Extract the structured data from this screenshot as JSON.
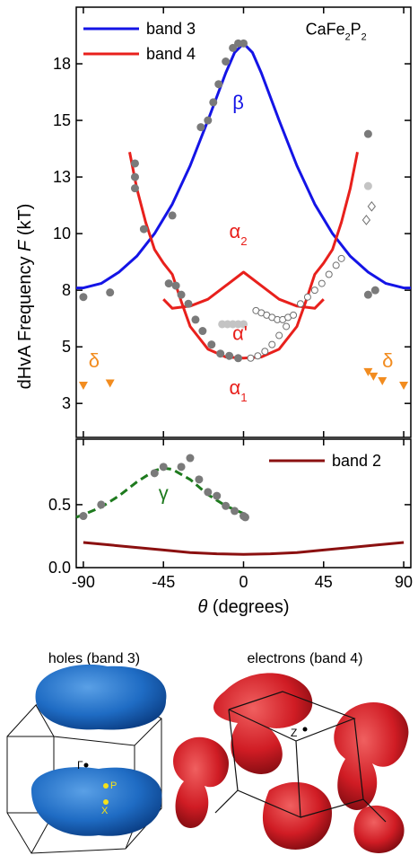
{
  "chart_data": [
    {
      "type": "line",
      "ylabel": [
        "dHvA Frequency ",
        "F",
        " (kT)"
      ],
      "xlim": [
        -94,
        94
      ],
      "xticks": [
        -90,
        -45,
        0,
        45,
        90
      ],
      "ylim": [
        1,
        20
      ],
      "yticks": [
        {
          "value": 2.5,
          "label": "3"
        },
        {
          "value": 5,
          "label": "5"
        },
        {
          "value": 7.5,
          "label": "8"
        },
        {
          "value": 10,
          "label": "10"
        },
        {
          "value": 12.5,
          "label": "13"
        },
        {
          "value": 15,
          "label": "15"
        },
        {
          "value": 17.5,
          "label": "18"
        }
      ],
      "legend": "upper left",
      "series": [
        {
          "type": "line",
          "name": "band 3",
          "color": "#1414e6",
          "x": [
            -94,
            -90,
            -80,
            -70,
            -60,
            -50,
            -40,
            -30,
            -20,
            -10,
            -5,
            0,
            5,
            10,
            20,
            30,
            40,
            50,
            60,
            70,
            80,
            90,
            94
          ],
          "values": [
            7.6,
            7.6,
            7.8,
            8.3,
            9.0,
            10.0,
            11.3,
            13.0,
            15.0,
            17.1,
            18.0,
            18.4,
            18.0,
            17.1,
            15.0,
            13.0,
            11.3,
            10.0,
            9.0,
            8.3,
            7.8,
            7.6,
            7.6
          ]
        },
        {
          "type": "line",
          "name": "band 4",
          "color": "#e8201c",
          "x": [
            -64,
            -60,
            -55,
            -50,
            -45,
            -40,
            -35,
            -30,
            -20,
            -10,
            0,
            10,
            20,
            30,
            35,
            40,
            45,
            50,
            55,
            60,
            64,
            null,
            -45,
            -40,
            -30,
            -20,
            -10,
            0,
            10,
            20,
            30,
            40,
            45
          ],
          "values": [
            13.6,
            12.0,
            10.5,
            9.3,
            8.7,
            8.2,
            7.0,
            5.9,
            4.9,
            4.55,
            4.5,
            4.55,
            4.9,
            5.9,
            7.0,
            8.2,
            8.7,
            9.3,
            10.5,
            12.0,
            13.6,
            null,
            7.1,
            6.7,
            6.8,
            7.1,
            7.7,
            8.3,
            7.7,
            7.1,
            6.8,
            6.7,
            7.1
          ]
        },
        {
          "type": "scatter",
          "marker": "circle",
          "color": "#7a7a7a",
          "x": [
            -90,
            -75,
            -61,
            -61,
            -61,
            -56,
            -40,
            -24,
            -20,
            -17,
            -14,
            -10,
            -6,
            -3,
            0,
            -42,
            -38,
            -35,
            -31,
            -27,
            -23,
            -18,
            -13,
            -8,
            -3,
            70,
            70,
            74
          ],
          "values": [
            7.2,
            7.4,
            13.1,
            12.5,
            12.0,
            10.2,
            10.8,
            14.7,
            15.0,
            15.8,
            16.6,
            17.6,
            18.2,
            18.4,
            18.4,
            7.8,
            7.7,
            7.3,
            6.9,
            6.2,
            5.7,
            5.1,
            4.7,
            4.6,
            4.5,
            14.4,
            7.3,
            7.5
          ]
        },
        {
          "type": "scatter",
          "marker": "circle",
          "color": "#c4c4c4",
          "x": [
            -12,
            -9,
            -6,
            -3,
            0,
            70
          ],
          "values": [
            6.0,
            6.0,
            6.0,
            6.0,
            6.0,
            12.1
          ]
        },
        {
          "type": "scatter",
          "marker": "open-circle",
          "color": "#707070",
          "x": [
            7,
            10,
            13,
            16,
            19,
            22,
            25,
            4,
            8,
            12,
            16,
            20,
            24,
            28,
            32,
            36,
            40,
            44,
            48,
            52,
            55
          ],
          "values": [
            6.6,
            6.5,
            6.4,
            6.3,
            6.2,
            6.2,
            6.3,
            4.5,
            4.6,
            4.8,
            5.1,
            5.5,
            5.9,
            6.4,
            6.9,
            7.2,
            7.5,
            7.8,
            8.2,
            8.6,
            8.9
          ]
        },
        {
          "type": "scatter",
          "marker": "diamond",
          "color": "#707070",
          "x": [
            72,
            69
          ],
          "values": [
            11.2,
            10.6
          ]
        },
        {
          "type": "scatter",
          "marker": "triangle",
          "color": "#f28c1f",
          "x": [
            -90,
            -75,
            70,
            73,
            78,
            90
          ],
          "values": [
            3.3,
            3.4,
            3.9,
            3.7,
            3.5,
            3.3
          ]
        }
      ],
      "annotations": [
        {
          "parts": [
            "β"
          ],
          "x": -3,
          "y": 15.5,
          "color": "#1414e6"
        },
        {
          "parts": [
            "α",
            "2"
          ],
          "x": -3,
          "y": 9.8,
          "color": "#e8201c"
        },
        {
          "parts": [
            "α'"
          ],
          "x": -2,
          "y": 5.3,
          "color": "#e8201c"
        },
        {
          "parts": [
            "α",
            "1"
          ],
          "x": -3,
          "y": 2.9,
          "color": "#e8201c"
        },
        {
          "parts": [
            "δ"
          ],
          "x": -84,
          "y": 4.1,
          "color": "#f28c1f"
        },
        {
          "parts": [
            "δ"
          ],
          "x": 81,
          "y": 4.1,
          "color": "#f28c1f"
        },
        {
          "parts": [
            "CaFe",
            "2",
            "P",
            "2"
          ],
          "x": 52,
          "y": 18.8,
          "color": "#000000"
        }
      ]
    },
    {
      "type": "line",
      "xlabel": [
        "θ",
        " (degrees)"
      ],
      "xlim": [
        -94,
        94
      ],
      "xticks": [
        -90,
        -45,
        0,
        45,
        90
      ],
      "ylim": [
        0,
        1.02
      ],
      "yticks": [
        {
          "value": 0,
          "label": "0.0"
        },
        0.5
      ],
      "legend": "upper right",
      "series": [
        {
          "type": "line",
          "name": "band 2",
          "color": "#8b1010",
          "x": [
            -90,
            -75,
            -60,
            -45,
            -30,
            -15,
            0,
            15,
            30,
            45,
            60,
            75,
            90
          ],
          "values": [
            0.2,
            0.18,
            0.16,
            0.14,
            0.12,
            0.11,
            0.105,
            0.11,
            0.12,
            0.14,
            0.16,
            0.18,
            0.2
          ]
        },
        {
          "type": "line",
          "style": "dashed",
          "color": "#1e7a1e",
          "x": [
            -94,
            -90,
            -80,
            -70,
            -60,
            -50,
            -45,
            -40,
            -30,
            -20,
            -10,
            0
          ],
          "values": [
            0.4,
            0.42,
            0.48,
            0.57,
            0.68,
            0.77,
            0.79,
            0.78,
            0.7,
            0.58,
            0.49,
            0.43
          ]
        },
        {
          "type": "scatter",
          "marker": "circle",
          "color": "#7a7a7a",
          "x": [
            -90,
            -80,
            -50,
            -45,
            -35,
            -30,
            -25,
            -20,
            -15,
            -10,
            -5,
            0,
            1
          ],
          "values": [
            0.41,
            0.5,
            0.75,
            0.8,
            0.8,
            0.87,
            0.7,
            0.6,
            0.57,
            0.49,
            0.45,
            0.41,
            0.4
          ]
        }
      ],
      "annotations": [
        {
          "parts": [
            "γ"
          ],
          "x": -45,
          "y": 0.54,
          "color": "#1e7a1e"
        }
      ]
    }
  ],
  "fermi_surfaces": {
    "holes": {
      "caption": "holes (band 3)",
      "labels": [
        "Γ",
        "P",
        "X"
      ]
    },
    "electrons": {
      "caption": "electrons (band 4)",
      "labels": [
        "Z"
      ]
    }
  }
}
